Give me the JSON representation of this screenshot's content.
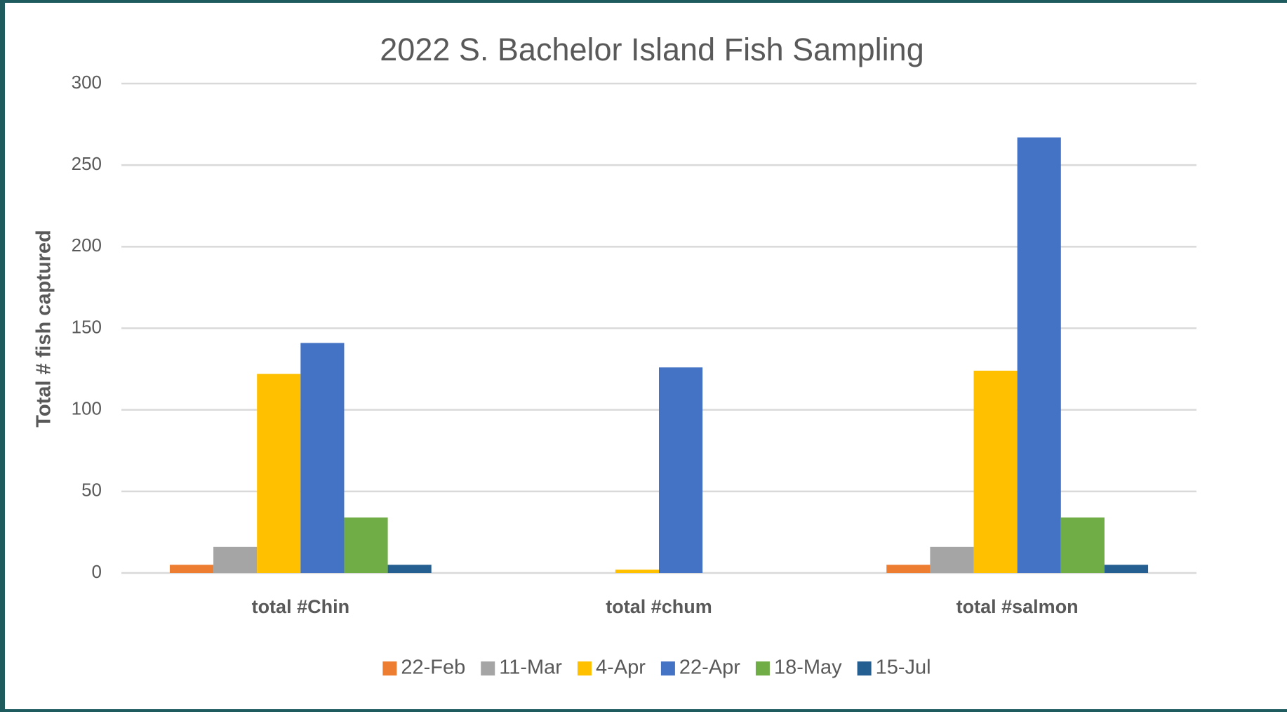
{
  "chart_data": {
    "type": "bar",
    "title": "2022 S. Bachelor Island Fish Sampling",
    "ylabel": "Total # fish captured",
    "categories": [
      "total #Chin",
      "total #chum",
      "total #salmon"
    ],
    "series": [
      {
        "name": "22-Feb",
        "color": "#ed7d31",
        "values": [
          5,
          0,
          5
        ]
      },
      {
        "name": "11-Mar",
        "color": "#a5a5a5",
        "values": [
          16,
          0,
          16
        ]
      },
      {
        "name": "4-Apr",
        "color": "#ffc000",
        "values": [
          122,
          2,
          124
        ]
      },
      {
        "name": "22-Apr",
        "color": "#4472c4",
        "values": [
          141,
          126,
          267
        ]
      },
      {
        "name": "18-May",
        "color": "#70ad47",
        "values": [
          34,
          0,
          34
        ]
      },
      {
        "name": "15-Jul",
        "color": "#255e91",
        "values": [
          5,
          0,
          5
        ]
      }
    ],
    "ylim": [
      0,
      300
    ],
    "yticks": [
      0,
      50,
      100,
      150,
      200,
      250,
      300
    ],
    "grid": true,
    "legend": "bottom"
  }
}
